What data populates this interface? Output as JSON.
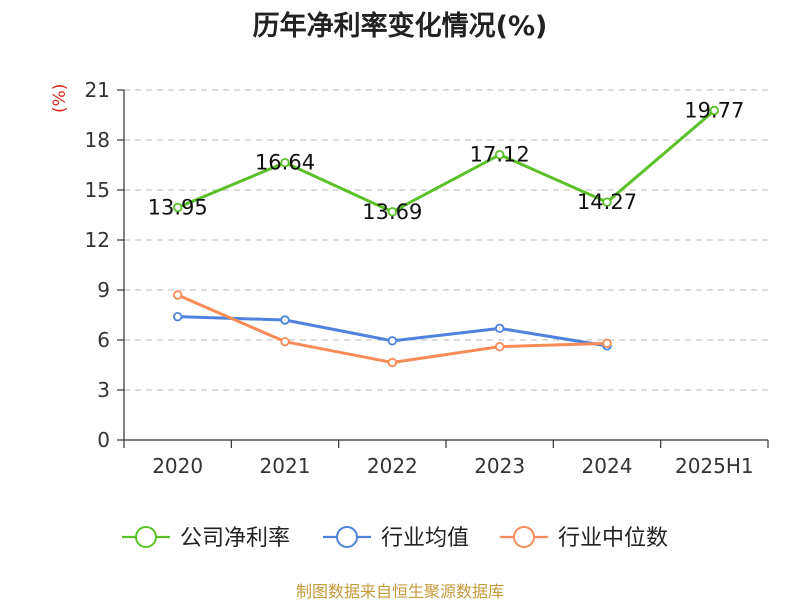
{
  "title": "历年净利率变化情况(%)",
  "source": "制图数据来自恒生聚源数据库",
  "colors": {
    "company": "#5ac129",
    "industry_avg": "#4f82de",
    "industry_median": "#f98b57",
    "grid": "#c8c8c8",
    "axis": "#333333",
    "unit": "#d9261c",
    "source": "#c49a3a"
  },
  "chart_data": {
    "type": "line",
    "title": "历年净利率变化情况(%)",
    "ylabel": "(%)",
    "xlabel": "",
    "categories": [
      "2020",
      "2021",
      "2022",
      "2023",
      "2024",
      "2025H1"
    ],
    "ylim": [
      0,
      21
    ],
    "yticks": [
      0,
      3,
      6,
      9,
      12,
      15,
      18,
      21
    ],
    "grid": true,
    "legend_position": "bottom",
    "series": [
      {
        "name": "公司净利率",
        "key": "company",
        "values": [
          13.95,
          16.64,
          13.69,
          17.12,
          14.27,
          19.77
        ],
        "data_labels": [
          "13.95",
          "16.64",
          "13.69",
          "17.12",
          "14.27",
          "19.77"
        ]
      },
      {
        "name": "行业均值",
        "key": "industry_avg",
        "values": [
          7.4,
          7.2,
          5.95,
          6.7,
          5.65,
          null
        ]
      },
      {
        "name": "行业中位数",
        "key": "industry_median",
        "values": [
          8.7,
          5.9,
          4.65,
          5.6,
          5.8,
          null
        ]
      }
    ]
  }
}
